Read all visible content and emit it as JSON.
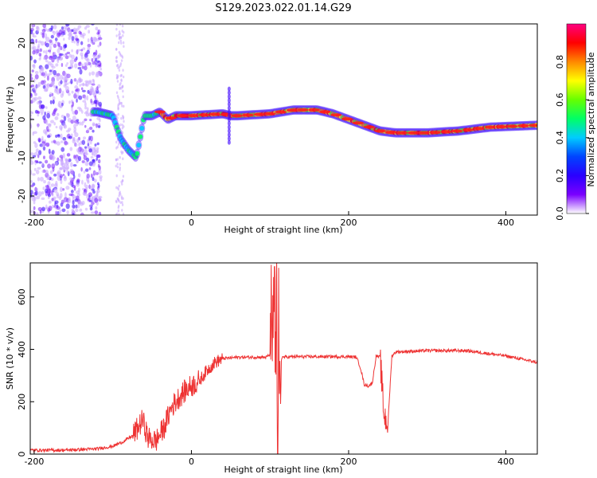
{
  "title": "S129.2023.022.01.14.G29",
  "chart_data": [
    {
      "type": "heatmap",
      "xlabel": "Height of straight line (km)",
      "ylabel": "Frequency (Hz)",
      "xlim": [
        -205,
        440
      ],
      "ylim": [
        -25,
        25
      ],
      "xticks": [
        -200,
        0,
        200,
        400
      ],
      "yticks": [
        -20,
        -10,
        0,
        10,
        20
      ],
      "colorbar": {
        "label": "Normalized spectral amplitude",
        "range": [
          0,
          1
        ],
        "ticks": [
          0.0,
          0.2,
          0.4,
          0.6,
          0.8
        ],
        "tick_labels": [
          "0.0",
          "0.2",
          "0.4",
          "0.6",
          "0.8"
        ],
        "colormap": [
          "#ffffff",
          "#7a00ff",
          "#2a00ff",
          "#0044ff",
          "#00ccff",
          "#00ff66",
          "#66ff00",
          "#ffff00",
          "#ff8800",
          "#ff0000",
          "#ff0080"
        ]
      },
      "ridge": {
        "x": [
          -120,
          -100,
          -90,
          -80,
          -70,
          -60,
          -50,
          -40,
          -30,
          -20,
          0,
          40,
          50,
          60,
          100,
          130,
          160,
          180,
          200,
          220,
          240,
          260,
          300,
          340,
          380,
          440
        ],
        "freq": [
          2,
          1,
          -5,
          -8,
          -10,
          1,
          1,
          2,
          0,
          1,
          1,
          1.5,
          1,
          1,
          1.5,
          2.5,
          2.5,
          1.5,
          0,
          -1.5,
          -3,
          -3.5,
          -3.5,
          -3,
          -2,
          -1.5
        ]
      },
      "grid": false
    },
    {
      "type": "line",
      "xlabel": "Height of straight line (km)",
      "ylabel": "SNR (10 * v/v)",
      "xlim": [
        -205,
        440
      ],
      "ylim": [
        0,
        730
      ],
      "xticks": [
        -200,
        0,
        200,
        400
      ],
      "yticks": [
        0,
        200,
        400,
        600
      ],
      "color": "#ee3333",
      "grid": false,
      "series": [
        {
          "x": [
            -205,
            -160,
            -120,
            -100,
            -85,
            -75,
            -68,
            -62,
            -55,
            -45,
            -35,
            -25,
            -15,
            -5,
            0,
            10,
            20,
            30,
            40,
            60,
            80,
            95,
            100,
            105,
            108,
            110,
            115,
            130,
            160,
            200,
            210,
            215,
            220,
            225,
            230,
            235,
            240,
            245,
            250,
            255,
            260,
            300,
            350,
            400,
            440
          ],
          "y": [
            15,
            15,
            20,
            30,
            50,
            70,
            100,
            130,
            60,
            50,
            100,
            180,
            220,
            250,
            260,
            280,
            320,
            350,
            365,
            370,
            370,
            370,
            380,
            470,
            300,
            60,
            370,
            372,
            372,
            372,
            370,
            330,
            265,
            260,
            270,
            375,
            370,
            150,
            115,
            375,
            390,
            395,
            395,
            375,
            350
          ]
        }
      ]
    }
  ]
}
